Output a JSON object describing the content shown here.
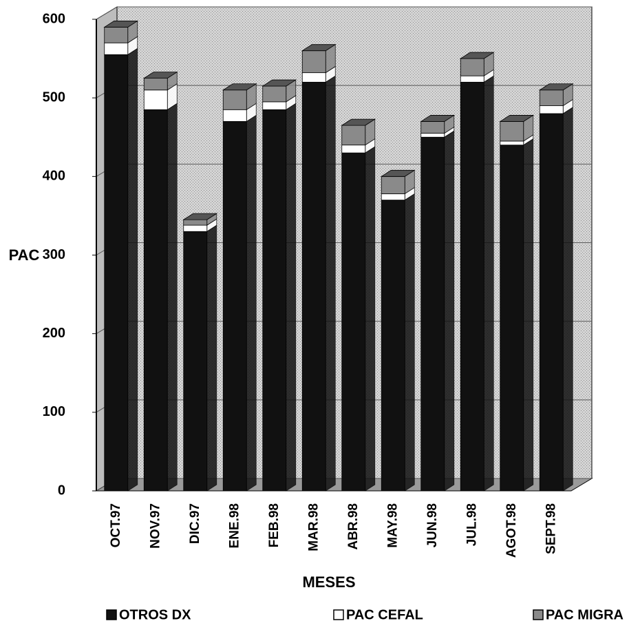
{
  "chart_data": {
    "type": "bar",
    "stacked": true,
    "x_label": "MESES",
    "y_label": "PAC",
    "categories": [
      "OCT.97",
      "NOV.97",
      "DIC.97",
      "ENE.98",
      "FEB.98",
      "MAR.98",
      "ABR.98",
      "MAY.98",
      "JUN.98",
      "JUL.98",
      "AGOT.98",
      "SEPT.98"
    ],
    "series": [
      {
        "name": "OTROS DX",
        "color": "#111111",
        "values": [
          555,
          485,
          330,
          470,
          485,
          520,
          430,
          370,
          450,
          520,
          440,
          480
        ]
      },
      {
        "name": "PAC CEFAL",
        "color": "#ffffff",
        "values": [
          15,
          25,
          8,
          15,
          10,
          12,
          10,
          8,
          5,
          8,
          5,
          10
        ]
      },
      {
        "name": "PAC MIGRA",
        "color": "#8a8a8a",
        "values": [
          20,
          15,
          7,
          25,
          20,
          28,
          25,
          22,
          15,
          22,
          25,
          20
        ]
      }
    ],
    "ylim": [
      0,
      600
    ],
    "yticks": [
      0,
      100,
      200,
      300,
      400,
      500,
      600
    ],
    "grid": true
  }
}
